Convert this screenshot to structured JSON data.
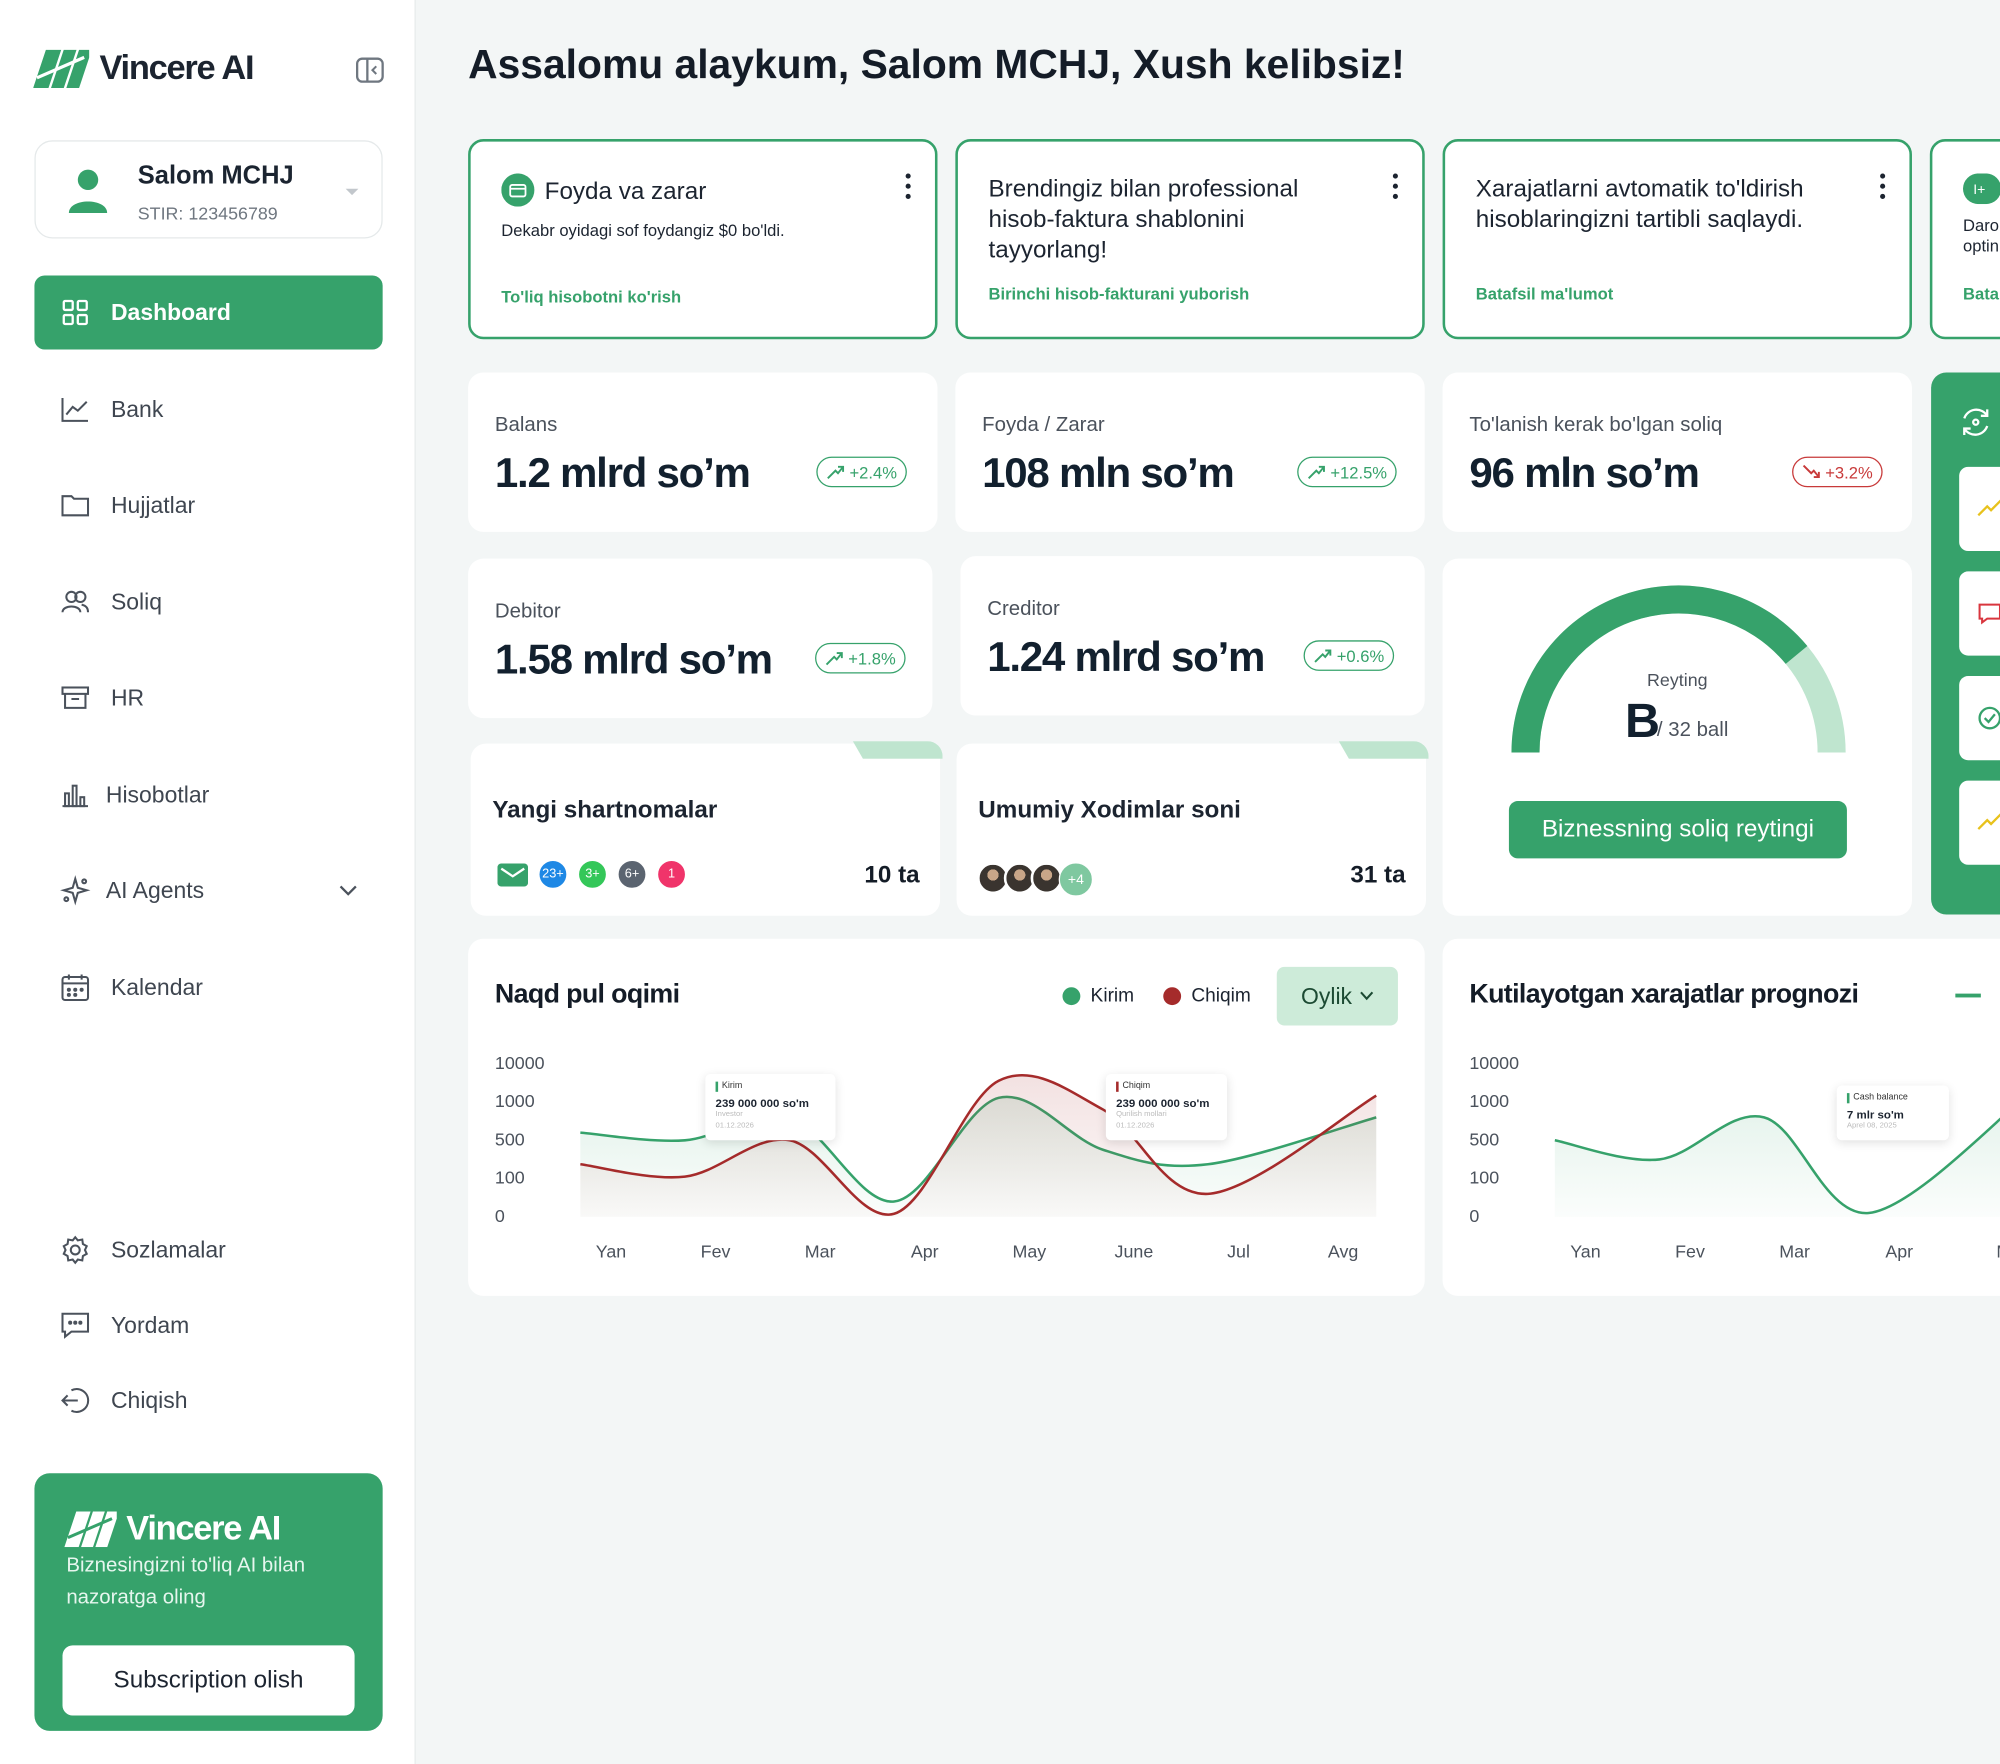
{
  "app": {
    "name": "Vincere AI"
  },
  "account": {
    "name": "Salom MCHJ",
    "stir": "STIR: 123456789"
  },
  "nav": [
    {
      "label": "Dashboard",
      "icon": "grid-icon",
      "active": true
    },
    {
      "label": "Bank",
      "icon": "chart-line-icon"
    },
    {
      "label": "Hujjatlar",
      "icon": "folder-icon"
    },
    {
      "label": "Soliq",
      "icon": "users-icon"
    },
    {
      "label": "HR",
      "icon": "archive-icon"
    },
    {
      "label": "Hisobotlar",
      "icon": "bar-chart-icon"
    },
    {
      "label": "AI Agents",
      "icon": "sparkle-icon"
    },
    {
      "label": "Kalendar",
      "icon": "calendar-icon"
    }
  ],
  "nav_bottom": [
    {
      "label": "Sozlamalar",
      "icon": "settings-icon"
    },
    {
      "label": "Yordam",
      "icon": "chat-icon"
    },
    {
      "label": "Chiqish",
      "icon": "logout-icon"
    }
  ],
  "promo": {
    "brand": "Vincere AI",
    "text": "Biznesingizni to'liq AI bilan nazoratga oling",
    "button": "Subscription olish"
  },
  "greeting": "Assalomu alaykum, Salom MCHJ, Xush kelibsiz!",
  "tips": [
    {
      "title": "Foyda va zarar",
      "subtitle": "Dekabr oyidagi sof foydangiz $0 bo'ldi.",
      "link": "To'liq hisobotni ko'rish"
    },
    {
      "title": "Brendingiz bilan professional hisob-faktura shablonini tayyorlang!",
      "link": "Birinchi hisob-fakturani yuborish"
    },
    {
      "title": "Xarajatlarni avtomatik to'ldirish hisoblaringizni tartibli saqlaydi.",
      "link": "Batafsil ma'lumot"
    },
    {
      "title": "Daro optin",
      "link": "Bata"
    }
  ],
  "metrics": [
    {
      "label": "Balans",
      "value": "1.2 mlrd so’m",
      "change": "+2.4%",
      "trend": "up"
    },
    {
      "label": "Foyda / Zarar",
      "value": "108 mln so’m",
      "change": "+12.5%",
      "trend": "up"
    },
    {
      "label": "To'lanish kerak bo'lgan soliq",
      "value": "96 mln so’m",
      "change": "+3.2%",
      "trend": "down"
    },
    {
      "label": "Debitor",
      "value": "1.58 mlrd so’m",
      "change": "+1.8%",
      "trend": "up"
    },
    {
      "label": "Creditor",
      "value": "1.24 mlrd so’m",
      "change": "+0.6%",
      "trend": "up"
    }
  ],
  "stats": [
    {
      "title": "Yangi shartnomalar",
      "count": "10 ta",
      "badges": [
        "23+",
        "3+",
        "6+",
        "1"
      ]
    },
    {
      "title": "Umumiy Xodimlar soni",
      "count": "31 ta",
      "more": "+4"
    }
  ],
  "rating": {
    "label": "Reyting",
    "grade": "B",
    "score": "/ 32 ball",
    "button": "Biznessning soliq reytingi",
    "fill": 0.78
  },
  "cashflow": {
    "title": "Naqd pul oqimi",
    "legend": [
      "Kirim",
      "Chiqim"
    ],
    "period": "Oylik",
    "tooltips": [
      {
        "tag": "Kirim",
        "amount": "239 000 000 so'm",
        "who": "Investor",
        "date": "01.12.2026"
      },
      {
        "tag": "Chiqim",
        "amount": "239 000 000 so'm",
        "who": "Qurilish mollari",
        "date": "01.12.2026"
      }
    ]
  },
  "forecast": {
    "title": "Kutilayotgan xarajatlar prognozi",
    "tooltip": {
      "tag": "Cash balance",
      "amount": "7 mlr so'm",
      "date": "Aprel 08, 2025"
    }
  },
  "chart_data": [
    {
      "type": "line",
      "title": "Naqd pul oqimi",
      "categories": [
        "Yan",
        "Fev",
        "Mar",
        "Apr",
        "May",
        "June",
        "Jul",
        "Avg"
      ],
      "y_ticks": [
        "10000",
        "1000",
        "500",
        "100",
        "0"
      ],
      "series": [
        {
          "name": "Kirim",
          "color": "#36a26b",
          "values": [
            600,
            500,
            800,
            40,
            2000,
            400,
            250,
            800
          ]
        },
        {
          "name": "Chiqim",
          "color": "#a52b2b",
          "values": [
            250,
            120,
            500,
            8,
            6000,
            900,
            60,
            2500
          ]
        }
      ]
    },
    {
      "type": "line",
      "title": "Kutilayotgan xarajatlar prognozi",
      "categories": [
        "Yan",
        "Fev",
        "Mar",
        "Apr",
        "M"
      ],
      "y_ticks": [
        "10000",
        "1000",
        "500",
        "100",
        "0"
      ],
      "series": [
        {
          "color": "#36a26b",
          "values": [
            500,
            300,
            800,
            10,
            3000
          ]
        }
      ]
    }
  ],
  "colors": {
    "brand": "#36a26b",
    "danger": "#c83a3a",
    "text": "#141c27"
  }
}
